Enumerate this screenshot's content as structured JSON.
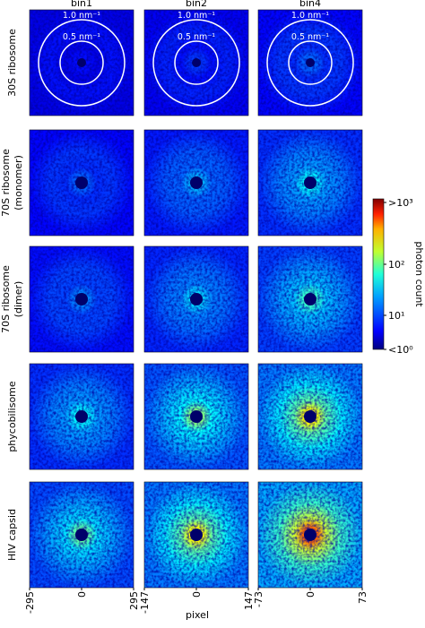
{
  "columns": [
    "bin1",
    "bin2",
    "bin4"
  ],
  "rows": [
    [
      "30S ribosome"
    ],
    [
      "70S ribosome",
      "(monomer)"
    ],
    [
      "70S ribosome",
      "(dimer)"
    ],
    [
      "phycobilisome"
    ],
    [
      "HIV capsid"
    ]
  ],
  "ring_labels": [
    [
      "1.0 nm⁻¹",
      "0.5 nm⁻¹"
    ],
    [
      "1.0 nm⁻¹",
      "0.5 nm⁻¹"
    ],
    [
      "1.0 nm⁻¹",
      "0.5 nm⁻¹"
    ]
  ],
  "x_ticks": [
    [
      "-295",
      "0",
      "295"
    ],
    [
      "-147",
      "0",
      "147"
    ],
    [
      "-73",
      "0",
      "73"
    ]
  ],
  "x_label": "pixel",
  "colorbar": {
    "label": "photon count",
    "ticks": [
      ">10³",
      "10²",
      "10¹",
      "<10⁰"
    ]
  }
}
